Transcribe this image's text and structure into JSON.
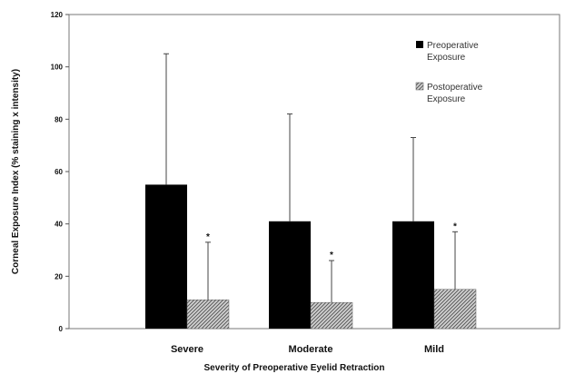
{
  "chart_data": {
    "type": "bar",
    "categories": [
      "Severe",
      "Moderate",
      "Mild"
    ],
    "series": [
      {
        "name": "Preoperative Exposure",
        "values": [
          55,
          41,
          41
        ],
        "error_upper": [
          105,
          82,
          73
        ],
        "color": "#000000"
      },
      {
        "name": "Postoperative Exposure",
        "values": [
          11,
          10,
          15
        ],
        "error_upper": [
          33,
          26,
          37
        ],
        "color": "#9a9a9a"
      }
    ],
    "significance_markers": [
      "*",
      "*",
      "*"
    ],
    "xlabel": "Severity of Preoperative Eyelid Retraction",
    "ylabel": "Corneal Exposure Index   (% staining x intensity)",
    "ylim": [
      0,
      120
    ],
    "yticks": [
      0,
      20,
      40,
      60,
      80,
      100,
      120
    ],
    "grid": false,
    "legend_position": "top-right",
    "legend_labels": [
      [
        "Preoperative",
        "Exposure"
      ],
      [
        "Postoperative",
        "Exposure"
      ]
    ]
  }
}
